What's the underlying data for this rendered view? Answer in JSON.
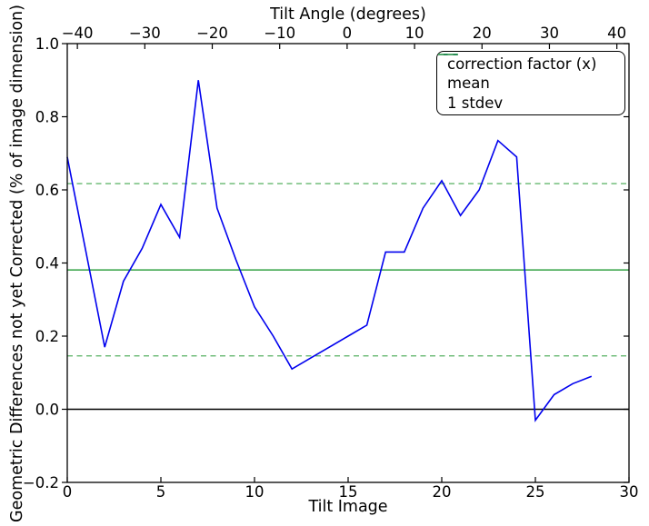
{
  "chart_data": {
    "type": "line",
    "title": "",
    "xlabel": "Tilt Image",
    "ylabel": "Geometric Differences not yet Corrected (% of image dimension)",
    "xlim": [
      0,
      30
    ],
    "ylim": [
      -0.2,
      1.0
    ],
    "x_ticks": [
      0,
      5,
      10,
      15,
      20,
      25,
      30
    ],
    "y_ticks": [
      1.0,
      0.8,
      0.6,
      0.4,
      0.2,
      0.0,
      -0.2
    ],
    "top_axis": {
      "label": "Tilt Angle (degrees)",
      "ticks": [
        -40,
        -30,
        -20,
        -10,
        0,
        10,
        20,
        30,
        40
      ],
      "lim": [
        -41.5,
        41.8
      ]
    },
    "grid": false,
    "legend_position": "upper right",
    "series": [
      {
        "name": "correction factor (x)",
        "type": "line",
        "style": "solid",
        "color": "#0000ee",
        "x": [
          0,
          1,
          2,
          3,
          4,
          5,
          6,
          7,
          8,
          9,
          10,
          11,
          12,
          13,
          14,
          15,
          16,
          17,
          18,
          19,
          20,
          21,
          22,
          23,
          24,
          25,
          26,
          27,
          28
        ],
        "y": [
          0.69,
          0.43,
          0.17,
          0.35,
          0.44,
          0.56,
          0.47,
          0.9,
          0.55,
          0.41,
          0.28,
          0.2,
          0.11,
          0.14,
          0.17,
          0.2,
          0.23,
          0.43,
          0.43,
          0.55,
          0.625,
          0.53,
          0.6,
          0.735,
          0.69,
          -0.03,
          0.04,
          0.07,
          0.09
        ]
      },
      {
        "name": "mean",
        "type": "hline",
        "style": "solid",
        "color": "#0a8f1f",
        "values": [
          0.381
        ]
      },
      {
        "name": "1 stdev",
        "type": "hline",
        "style": "dashed",
        "color": "#55b060",
        "values": [
          0.617,
          0.146
        ]
      }
    ],
    "zero_line": {
      "value": 0.0,
      "color": "#000000"
    },
    "axis_color": "#000000",
    "stats": {
      "mean": 0.381,
      "stdev": 0.236
    }
  }
}
